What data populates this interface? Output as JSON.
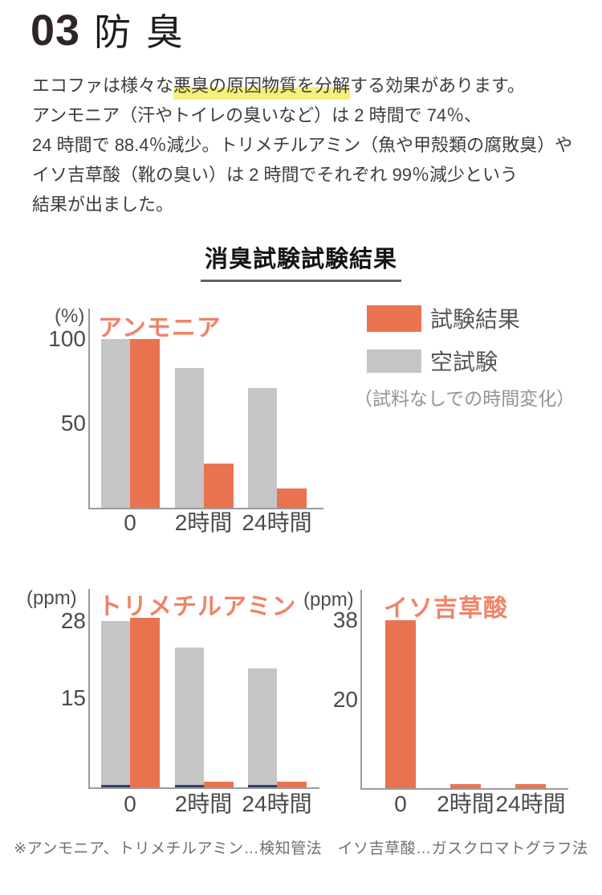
{
  "page": {
    "header": {
      "number": "03",
      "title": "防 臭"
    },
    "intro": {
      "line1_pre": "エコファは様々な",
      "line1_highlight": "悪臭の原因物質を分解",
      "line1_post": "する効果があります。",
      "line2": "アンモニア（汗やトイレの臭いなど）は 2 時間で 74％、",
      "line3": "24 時間で 88.4％減少。トリメチルアミン（魚や甲殻類の腐敗臭）や",
      "line4": "イソ吉草酸（靴の臭い）は 2 時間でそれぞれ 99％減少という",
      "line5": "結果が出ました。"
    },
    "section_title": "消臭試験試験結果",
    "legend": {
      "test_label": "試験結果",
      "blank_label": "空試験",
      "note": "（試料なしでの時間変化）"
    },
    "footnote": "※アンモニア、トリメチルアミン…検知管法　イソ吉草酸…ガスクロマトグラフ法",
    "colors": {
      "accent_orange": "#E97350",
      "title_orange": "#F08468",
      "bar_gray": "#C5C5C5",
      "axis_gray": "#9B9B9B",
      "navy_accent": "#33406B",
      "highlight_yellow": "#F6EE7D",
      "heading_number": "#30242A"
    }
  },
  "chart_data": [
    {
      "type": "bar",
      "title": "アンモニア",
      "unit": "(%)",
      "categories": [
        "0",
        "2時間",
        "24時間"
      ],
      "series": [
        {
          "name": "空試験",
          "values": [
            100,
            83,
            71
          ]
        },
        {
          "name": "試験結果",
          "values": [
            100,
            26,
            11.6
          ]
        }
      ],
      "yticks": [
        100,
        50
      ],
      "ylim": [
        0,
        118
      ],
      "grid": false,
      "legend_position": "right"
    },
    {
      "type": "bar",
      "title": "トリメチルアミン",
      "unit": "(ppm)",
      "categories": [
        "0",
        "2時間",
        "24時間"
      ],
      "series": [
        {
          "name": "空試験",
          "values": [
            28,
            23.5,
            20
          ]
        },
        {
          "name": "試験結果",
          "values": [
            28.5,
            1,
            1
          ]
        }
      ],
      "yticks": [
        28,
        15
      ],
      "ylim": [
        0,
        33.4
      ],
      "grid": false
    },
    {
      "type": "bar",
      "title": "イソ吉草酸",
      "unit": "(ppm)",
      "categories": [
        "0",
        "2時間",
        "24時間"
      ],
      "series": [
        {
          "name": "試験結果",
          "values": [
            38,
            1,
            1
          ]
        }
      ],
      "yticks": [
        38,
        20
      ],
      "ylim": [
        0,
        45
      ],
      "grid": false
    }
  ]
}
